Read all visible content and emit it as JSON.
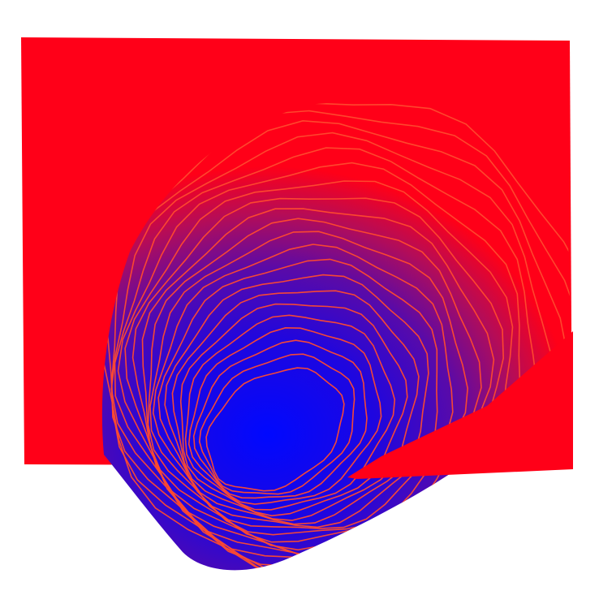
{
  "chart_data": {
    "type": "heatmap",
    "subtype": "3d-surface-with-contours",
    "title": "",
    "xlabel": "",
    "ylabel": "",
    "zlabel": "",
    "axes_visible": false,
    "grid": false,
    "legend": "none",
    "colormap": {
      "low": "#0000ff",
      "high": "#ff0018"
    },
    "contour_color": "#ff4b2e",
    "contour_levels": 21
  }
}
